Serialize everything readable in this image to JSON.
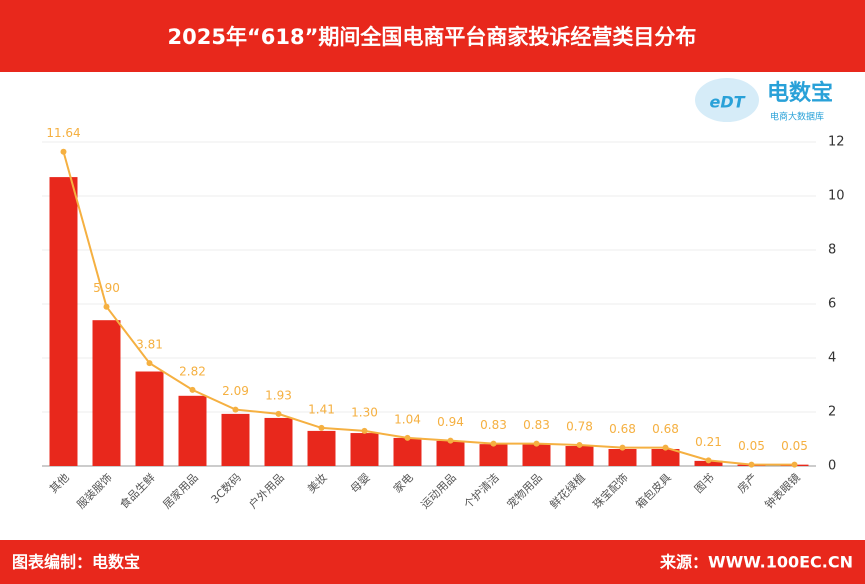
{
  "chart_data": {
    "type": "bar-line",
    "title": "2025年“618”期间全国电商平台商家投诉经营类目分布",
    "logo": {
      "name": "电数宝",
      "tagline": "电商大数据库",
      "mark": "eDT"
    },
    "footer_left": "图表编制：电数宝",
    "footer_right": "来源：WWW.100EC.CN",
    "categories": [
      "其他",
      "服装服饰",
      "食品生鲜",
      "居家用品",
      "3C数码",
      "户外用品",
      "美妆",
      "母婴",
      "家电",
      "运动用品",
      "个护清洁",
      "宠物用品",
      "鲜花绿植",
      "珠宝配饰",
      "箱包皮具",
      "图书",
      "房产",
      "钟表眼镜"
    ],
    "series": [
      {
        "type": "bar",
        "color": "#e8281c",
        "values": [
          10.7,
          5.4,
          3.5,
          2.6,
          1.93,
          1.78,
          1.3,
          1.22,
          1.04,
          0.93,
          0.81,
          0.81,
          0.74,
          0.63,
          0.63,
          0.19,
          0.05,
          0.05
        ]
      },
      {
        "type": "line",
        "color": "#f5b041",
        "values": [
          11.64,
          5.9,
          3.81,
          2.82,
          2.09,
          1.93,
          1.41,
          1.3,
          1.04,
          0.94,
          0.83,
          0.83,
          0.78,
          0.68,
          0.68,
          0.21,
          0.05,
          0.05
        ],
        "value_labels": [
          "11.64",
          "5.90",
          "3.81",
          "2.82",
          "2.09",
          "1.93",
          "1.41",
          "1.30",
          "1.04",
          "0.94",
          "0.83",
          "0.83",
          "0.78",
          "0.68",
          "0.68",
          "0.21",
          "0.05",
          "0.05"
        ]
      }
    ],
    "ylim": [
      0,
      12
    ],
    "yticks": [
      0,
      2,
      4,
      6,
      8,
      10,
      12
    ],
    "grid": true
  }
}
